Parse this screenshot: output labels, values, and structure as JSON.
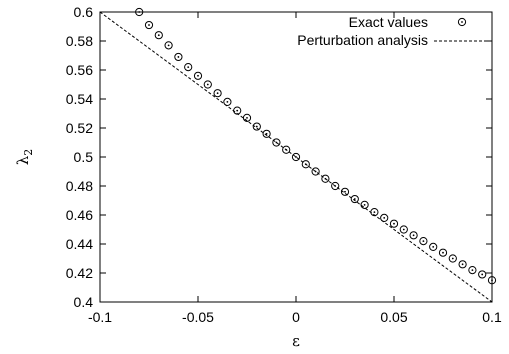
{
  "chart_data": {
    "type": "scatter",
    "xlabel": "ε",
    "ylabel_base": "λ",
    "ylabel_sub": "2",
    "xlim": [
      -0.1,
      0.1
    ],
    "ylim": [
      0.4,
      0.6
    ],
    "x_ticks": [
      "-0.1",
      "-0.05",
      "0",
      "0.05",
      "0.1"
    ],
    "y_ticks": [
      "0.4",
      "0.42",
      "0.44",
      "0.46",
      "0.48",
      "0.5",
      "0.52",
      "0.54",
      "0.56",
      "0.58",
      "0.6"
    ],
    "x_tick_values": [
      -0.1,
      -0.05,
      0,
      0.05,
      0.1
    ],
    "y_tick_values": [
      0.4,
      0.42,
      0.44,
      0.46,
      0.48,
      0.5,
      0.52,
      0.54,
      0.56,
      0.58,
      0.6
    ],
    "grid": false,
    "legend_position": "top-right",
    "series": [
      {
        "name": "Exact values",
        "style": "open-circle-with-dot",
        "x": [
          -0.08,
          -0.075,
          -0.07,
          -0.065,
          -0.06,
          -0.055,
          -0.05,
          -0.045,
          -0.04,
          -0.035,
          -0.03,
          -0.025,
          -0.02,
          -0.015,
          -0.01,
          -0.005,
          0,
          0.005,
          0.01,
          0.015,
          0.02,
          0.025,
          0.03,
          0.035,
          0.04,
          0.045,
          0.05,
          0.055,
          0.06,
          0.065,
          0.07,
          0.075,
          0.08,
          0.085,
          0.09,
          0.095,
          0.1
        ],
        "y": [
          0.6,
          0.591,
          0.584,
          0.577,
          0.569,
          0.562,
          0.556,
          0.55,
          0.544,
          0.538,
          0.532,
          0.527,
          0.521,
          0.516,
          0.51,
          0.505,
          0.5,
          0.495,
          0.49,
          0.485,
          0.48,
          0.476,
          0.471,
          0.467,
          0.462,
          0.458,
          0.454,
          0.45,
          0.446,
          0.442,
          0.438,
          0.434,
          0.43,
          0.426,
          0.422,
          0.419,
          0.415
        ]
      },
      {
        "name": "Perturbation analysis",
        "style": "dashed-line",
        "x": [
          -0.1,
          0.1
        ],
        "y": [
          0.6,
          0.4
        ]
      }
    ]
  }
}
